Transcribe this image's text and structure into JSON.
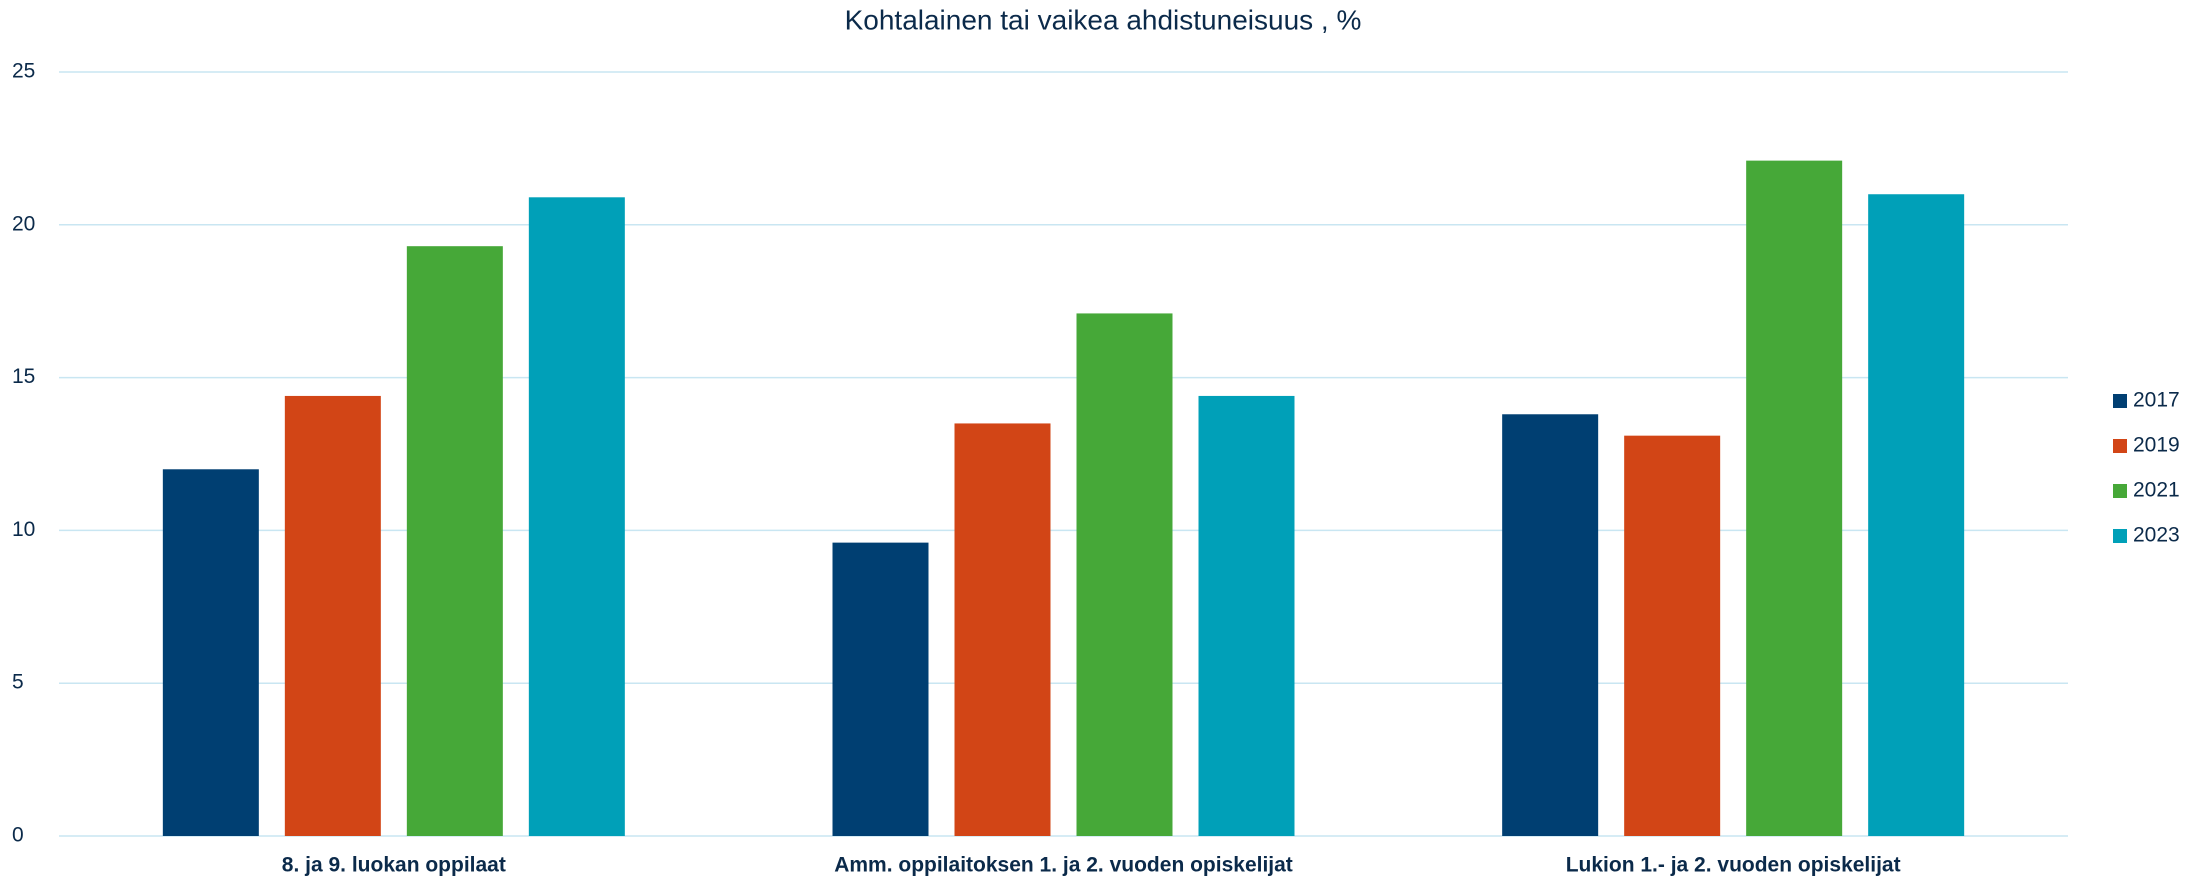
{
  "chart_data": {
    "type": "bar",
    "title": "Kohtalainen tai vaikea ahdistuneisuus , %",
    "categories": [
      "8. ja 9. luokan oppilaat",
      "Amm. oppilaitoksen 1. ja 2. vuoden opiskelijat",
      "Lukion 1.- ja 2. vuoden opiskelijat"
    ],
    "series": [
      {
        "name": "2017",
        "color": "#003f72",
        "values": [
          12.0,
          9.6,
          13.8
        ]
      },
      {
        "name": "2019",
        "color": "#d24516",
        "values": [
          14.4,
          13.5,
          13.1
        ]
      },
      {
        "name": "2021",
        "color": "#46a838",
        "values": [
          19.3,
          17.1,
          22.1
        ]
      },
      {
        "name": "2023",
        "color": "#00a0b8",
        "values": [
          20.9,
          14.4,
          21.0
        ]
      }
    ],
    "ylim": [
      0,
      25
    ],
    "yticks": [
      0,
      5,
      10,
      15,
      20,
      25
    ],
    "grid": true,
    "legend": "right"
  }
}
